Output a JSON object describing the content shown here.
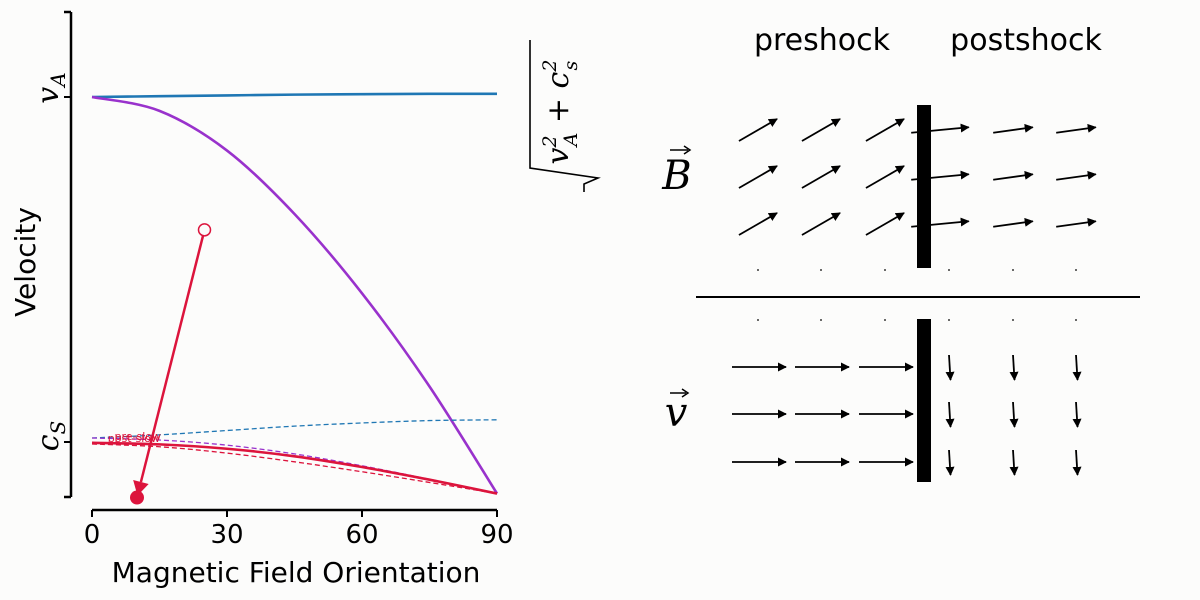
{
  "chart_data": {
    "type": "line",
    "xlabel": "Magnetic Field Orientation",
    "ylabel": "Velocity",
    "xlim": [
      0,
      90
    ],
    "ylim": [
      -0.06,
      1.18
    ],
    "x_ticks": [
      0,
      30,
      60,
      90
    ],
    "y_tick_labels": [
      {
        "label": "v_A",
        "value": 1.0
      },
      {
        "label": "c_s",
        "value": 0.13
      }
    ],
    "right_label": "√(v_A² + c_s²)",
    "grid": false,
    "series": [
      {
        "color": "#1f77b4",
        "style": "solid",
        "x": [
          0,
          15,
          30,
          45,
          60,
          75,
          90
        ],
        "y": [
          1.0,
          1.002,
          1.004,
          1.006,
          1.007,
          1.008,
          1.008
        ]
      },
      {
        "color": "#9932cc",
        "style": "solid",
        "x": [
          0,
          15,
          30,
          45,
          60,
          75,
          90
        ],
        "y": [
          1.0,
          0.965,
          0.865,
          0.705,
          0.505,
          0.27,
          0.0
        ]
      },
      {
        "color": "#1f77b4",
        "style": "dashed",
        "x": [
          0,
          15,
          30,
          45,
          60,
          75,
          90
        ],
        "y": [
          0.14,
          0.148,
          0.159,
          0.17,
          0.178,
          0.184,
          0.186
        ]
      },
      {
        "color": "#9932cc",
        "style": "dashed",
        "x": [
          0,
          15,
          30,
          45,
          60,
          75,
          90
        ],
        "y": [
          0.14,
          0.135,
          0.122,
          0.1,
          0.07,
          0.036,
          0.0
        ]
      },
      {
        "color": "#dc143c",
        "style": "solid",
        "x": [
          0,
          15,
          30,
          45,
          60,
          75,
          90
        ],
        "y": [
          0.128,
          0.124,
          0.113,
          0.094,
          0.067,
          0.035,
          0.0
        ]
      },
      {
        "color": "#dc143c",
        "style": "dashed",
        "x": [
          0,
          15,
          30,
          45,
          60,
          75,
          90
        ],
        "y": [
          0.125,
          0.118,
          0.102,
          0.08,
          0.055,
          0.028,
          0.0
        ]
      }
    ],
    "annotations": [
      {
        "text": "pre-slow",
        "x": 5,
        "y": 0.14,
        "color": "#dc143c"
      },
      {
        "text": "post-slow",
        "x": 3.5,
        "y": 0.135,
        "color": "#dc143c"
      }
    ],
    "transition": {
      "color": "#dc143c",
      "from": {
        "x": 25,
        "y": 0.665
      },
      "to": {
        "x": 10,
        "y": -0.01
      }
    }
  },
  "diagram": {
    "preshock_label": "preshock",
    "postshock_label": "postshock",
    "b_label": "B",
    "v_label": "v",
    "pre_angle_deg": 30,
    "post_angle_deg": 8,
    "colors": {
      "arrow": "#000000",
      "shock": "#000000"
    }
  }
}
